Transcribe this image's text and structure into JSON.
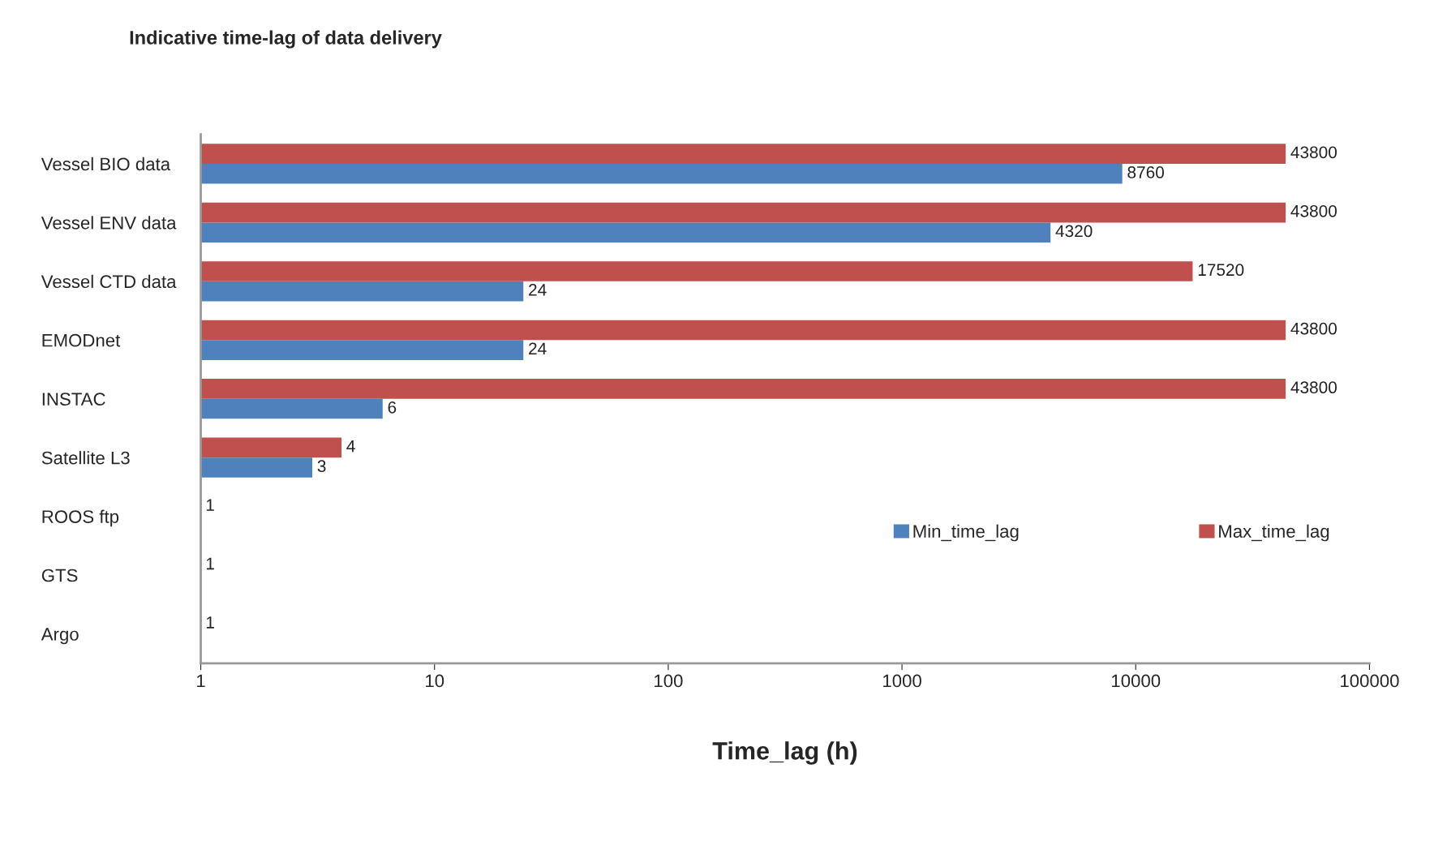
{
  "chart_data": {
    "type": "bar",
    "orientation": "horizontal",
    "title": "Indicative time-lag of data delivery",
    "xlabel": "Time_lag (h)",
    "categories": [
      "Vessel BIO data",
      "Vessel ENV data",
      "Vessel CTD data",
      "EMODnet",
      "INSTAC",
      "Satellite L3",
      "ROOS ftp",
      "GTS",
      "Argo"
    ],
    "series": [
      {
        "name": "Min_time_lag",
        "color": "#4f81bd",
        "values": [
          8760,
          4320,
          24,
          24,
          6,
          3,
          null,
          null,
          null
        ]
      },
      {
        "name": "Max_time_lag",
        "color": "#c0504d",
        "values": [
          43800,
          43800,
          17520,
          43800,
          43800,
          4,
          1,
          1,
          1
        ]
      }
    ],
    "log": "x",
    "xlim": [
      1,
      100000
    ],
    "xticks": [
      1,
      10,
      100,
      1000,
      10000,
      100000
    ],
    "grid": false,
    "legend": "lower right",
    "data_labels": true
  }
}
